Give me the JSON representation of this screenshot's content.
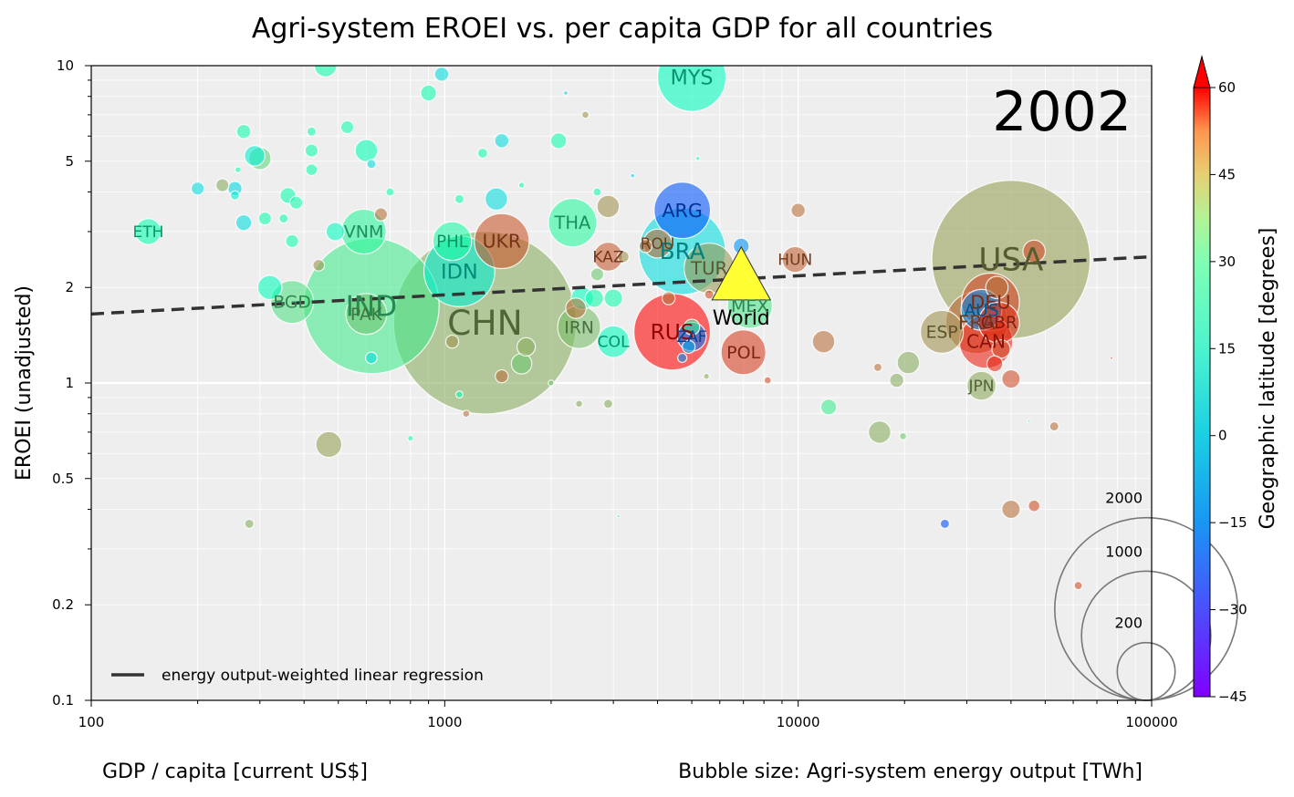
{
  "chart_data": {
    "type": "scatter",
    "title": "Agri-system EROEI vs. per capita GDP for all countries",
    "xlabel": "GDP / capita [current US$]",
    "ylabel": "EROEI (unadjusted)",
    "size_label": "Bubble size: Agri-system energy output [TWh]",
    "colorbar_label": "Geographic latitude [degrees]",
    "year": "2002",
    "x_scale": "log",
    "y_scale": "log",
    "xlim": [
      100,
      100000
    ],
    "ylim": [
      0.1,
      10
    ],
    "grid": true,
    "x_ticks": [
      100,
      1000,
      10000,
      100000
    ],
    "x_tick_labels": [
      "100",
      "1000",
      "10000",
      "100000"
    ],
    "y_ticks": [
      0.1,
      0.2,
      0.5,
      1,
      2,
      5,
      10
    ],
    "y_tick_labels": [
      "0.1",
      "0.2",
      "0.5",
      "1",
      "2",
      "5",
      "10"
    ],
    "colorbar": {
      "min": -45,
      "max": 60,
      "ticks": [
        60,
        45,
        30,
        15,
        0,
        -15,
        -30,
        -45
      ],
      "tick_labels": [
        "60",
        "45",
        "30",
        "15",
        "0",
        "−15",
        "−30",
        "−45"
      ],
      "extend": "max",
      "colormap": "rainbow"
    },
    "legend": {
      "placement": "lower-left",
      "entry": "energy output-weighted linear regression"
    },
    "size_legend": {
      "placement": "lower-right",
      "values": [
        2000,
        1000,
        200
      ],
      "labels": [
        "2000",
        "1000",
        "200"
      ]
    },
    "regression": {
      "x": [
        100,
        100000
      ],
      "y": [
        1.65,
        2.5
      ]
    },
    "world": {
      "label": "World",
      "x": 6900,
      "y": 2.2,
      "lat": 30
    },
    "labeled_points": [
      {
        "label": "USA",
        "x": 40000,
        "y": 2.45,
        "energy": 1500,
        "lat": 38
      },
      {
        "label": "CHN",
        "x": 1300,
        "y": 1.55,
        "energy": 2000,
        "lat": 35
      },
      {
        "label": "IND",
        "x": 620,
        "y": 1.75,
        "energy": 1100,
        "lat": 21
      },
      {
        "label": "IDN",
        "x": 1100,
        "y": 2.25,
        "energy": 300,
        "lat": -5
      },
      {
        "label": "BRA",
        "x": 4700,
        "y": 2.6,
        "energy": 450,
        "lat": -10
      },
      {
        "label": "RUS",
        "x": 4400,
        "y": 1.45,
        "energy": 350,
        "lat": 60
      },
      {
        "label": "ARG",
        "x": 4700,
        "y": 3.5,
        "energy": 190,
        "lat": -34
      },
      {
        "label": "MYS",
        "x": 5000,
        "y": 9.2,
        "energy": 280,
        "lat": 4
      },
      {
        "label": "THA",
        "x": 2300,
        "y": 3.2,
        "energy": 140,
        "lat": 15
      },
      {
        "label": "VNM",
        "x": 590,
        "y": 3.0,
        "energy": 120,
        "lat": 16
      },
      {
        "label": "PHL",
        "x": 1050,
        "y": 2.8,
        "energy": 90,
        "lat": 13
      },
      {
        "label": "UKR",
        "x": 1450,
        "y": 2.8,
        "energy": 180,
        "lat": 49
      },
      {
        "label": "KAZ",
        "x": 2900,
        "y": 2.5,
        "energy": 50,
        "lat": 48
      },
      {
        "label": "ROU",
        "x": 4000,
        "y": 2.75,
        "energy": 50,
        "lat": 46
      },
      {
        "label": "TUR",
        "x": 5600,
        "y": 2.3,
        "energy": 150,
        "lat": 39
      },
      {
        "label": "HUN",
        "x": 9800,
        "y": 2.45,
        "energy": 40,
        "lat": 47
      },
      {
        "label": "MEX",
        "x": 7300,
        "y": 1.75,
        "energy": 120,
        "lat": 23
      },
      {
        "label": "POL",
        "x": 7000,
        "y": 1.25,
        "energy": 120,
        "lat": 52
      },
      {
        "label": "ZAF",
        "x": 5000,
        "y": 1.4,
        "energy": 50,
        "lat": -29
      },
      {
        "label": "COL",
        "x": 3000,
        "y": 1.35,
        "energy": 60,
        "lat": 4
      },
      {
        "label": "IRN",
        "x": 2400,
        "y": 1.5,
        "energy": 110,
        "lat": 32
      },
      {
        "label": "BGD",
        "x": 370,
        "y": 1.8,
        "energy": 110,
        "lat": 24
      },
      {
        "label": "PAK",
        "x": 600,
        "y": 1.65,
        "energy": 100,
        "lat": 30
      },
      {
        "label": "ETH",
        "x": 145,
        "y": 3.0,
        "energy": 40,
        "lat": 9
      },
      {
        "label": "DEU",
        "x": 35000,
        "y": 1.8,
        "energy": 200,
        "lat": 51
      },
      {
        "label": "AUS",
        "x": 33000,
        "y": 1.7,
        "energy": 100,
        "lat": -25
      },
      {
        "label": "FRA",
        "x": 32000,
        "y": 1.55,
        "energy": 230,
        "lat": 46
      },
      {
        "label": "GBR",
        "x": 37000,
        "y": 1.55,
        "energy": 100,
        "lat": 54
      },
      {
        "label": "CAN",
        "x": 34000,
        "y": 1.35,
        "energy": 170,
        "lat": 56
      },
      {
        "label": "ESP",
        "x": 25500,
        "y": 1.45,
        "energy": 110,
        "lat": 40
      },
      {
        "label": "JPN",
        "x": 33000,
        "y": 0.98,
        "energy": 50,
        "lat": 36
      }
    ],
    "other_points": [
      {
        "x": 460,
        "y": 10.0,
        "energy": 30,
        "lat": 10
      },
      {
        "x": 980,
        "y": 9.4,
        "energy": 12,
        "lat": -10
      },
      {
        "x": 900,
        "y": 8.2,
        "energy": 15,
        "lat": 10
      },
      {
        "x": 2200,
        "y": 8.2,
        "energy": 1,
        "lat": -15
      },
      {
        "x": 2500,
        "y": 7.0,
        "energy": 3,
        "lat": 40
      },
      {
        "x": 270,
        "y": 6.2,
        "energy": 12,
        "lat": 10
      },
      {
        "x": 420,
        "y": 6.2,
        "energy": 5,
        "lat": 10
      },
      {
        "x": 530,
        "y": 6.4,
        "energy": 10,
        "lat": 10
      },
      {
        "x": 1450,
        "y": 5.8,
        "energy": 12,
        "lat": -10
      },
      {
        "x": 2100,
        "y": 5.8,
        "energy": 15,
        "lat": 10
      },
      {
        "x": 600,
        "y": 5.4,
        "energy": 30,
        "lat": 8
      },
      {
        "x": 300,
        "y": 5.1,
        "energy": 30,
        "lat": 27
      },
      {
        "x": 290,
        "y": 5.2,
        "energy": 25,
        "lat": -5
      },
      {
        "x": 420,
        "y": 5.4,
        "energy": 10,
        "lat": 10
      },
      {
        "x": 1280,
        "y": 5.3,
        "energy": 6,
        "lat": 10
      },
      {
        "x": 620,
        "y": 4.9,
        "energy": 5,
        "lat": -10
      },
      {
        "x": 420,
        "y": 4.7,
        "energy": 8,
        "lat": 10
      },
      {
        "x": 260,
        "y": 4.7,
        "energy": 2,
        "lat": 10
      },
      {
        "x": 200,
        "y": 4.1,
        "energy": 10,
        "lat": -10
      },
      {
        "x": 235,
        "y": 4.2,
        "energy": 10,
        "lat": 35
      },
      {
        "x": 255,
        "y": 4.1,
        "energy": 12,
        "lat": -12
      },
      {
        "x": 255,
        "y": 3.9,
        "energy": 5,
        "lat": -5
      },
      {
        "x": 700,
        "y": 4.0,
        "energy": 4,
        "lat": 10
      },
      {
        "x": 1650,
        "y": 4.2,
        "energy": 2,
        "lat": 10
      },
      {
        "x": 1400,
        "y": 3.8,
        "energy": 30,
        "lat": -10
      },
      {
        "x": 1100,
        "y": 3.8,
        "energy": 5,
        "lat": 10
      },
      {
        "x": 2700,
        "y": 4.0,
        "energy": 4,
        "lat": 10
      },
      {
        "x": 2900,
        "y": 3.6,
        "energy": 30,
        "lat": 40
      },
      {
        "x": 360,
        "y": 3.9,
        "energy": 15,
        "lat": 10
      },
      {
        "x": 380,
        "y": 3.7,
        "energy": 10,
        "lat": 10
      },
      {
        "x": 270,
        "y": 3.2,
        "energy": 15,
        "lat": -10
      },
      {
        "x": 310,
        "y": 3.3,
        "energy": 10,
        "lat": 10
      },
      {
        "x": 350,
        "y": 3.3,
        "energy": 5,
        "lat": 10
      },
      {
        "x": 490,
        "y": 3.0,
        "energy": 20,
        "lat": 5
      },
      {
        "x": 660,
        "y": 3.4,
        "energy": 10,
        "lat": 45
      },
      {
        "x": 370,
        "y": 2.8,
        "energy": 10,
        "lat": 10
      },
      {
        "x": 3400,
        "y": 4.5,
        "energy": 1,
        "lat": -15
      },
      {
        "x": 5200,
        "y": 5.1,
        "energy": 1,
        "lat": 10
      },
      {
        "x": 10000,
        "y": 3.5,
        "energy": 12,
        "lat": 45
      },
      {
        "x": 6900,
        "y": 2.7,
        "energy": 15,
        "lat": -25
      },
      {
        "x": 3700,
        "y": 2.7,
        "energy": 10,
        "lat": 45
      },
      {
        "x": 3200,
        "y": 2.5,
        "energy": 8,
        "lat": 40
      },
      {
        "x": 440,
        "y": 2.35,
        "energy": 8,
        "lat": 40
      },
      {
        "x": 2700,
        "y": 2.2,
        "energy": 10,
        "lat": 30
      },
      {
        "x": 3000,
        "y": 1.85,
        "energy": 20,
        "lat": 10
      },
      {
        "x": 2450,
        "y": 1.85,
        "energy": 30,
        "lat": 5
      },
      {
        "x": 2350,
        "y": 1.72,
        "energy": 25,
        "lat": 45
      },
      {
        "x": 2650,
        "y": 1.85,
        "energy": 20,
        "lat": 10
      },
      {
        "x": 320,
        "y": 2.0,
        "energy": 35,
        "lat": 5
      },
      {
        "x": 4300,
        "y": 1.85,
        "energy": 10,
        "lat": 45
      },
      {
        "x": 5000,
        "y": 1.5,
        "energy": 15,
        "lat": 20
      },
      {
        "x": 4900,
        "y": 1.3,
        "energy": 10,
        "lat": -20
      },
      {
        "x": 4700,
        "y": 1.2,
        "energy": 5,
        "lat": -25
      },
      {
        "x": 5500,
        "y": 1.05,
        "energy": 2,
        "lat": 35
      },
      {
        "x": 5600,
        "y": 1.9,
        "energy": 5,
        "lat": 50
      },
      {
        "x": 1700,
        "y": 1.3,
        "energy": 20,
        "lat": 35
      },
      {
        "x": 1650,
        "y": 1.15,
        "energy": 25,
        "lat": 30
      },
      {
        "x": 1050,
        "y": 1.35,
        "energy": 10,
        "lat": 40
      },
      {
        "x": 1450,
        "y": 1.05,
        "energy": 10,
        "lat": 45
      },
      {
        "x": 620,
        "y": 1.2,
        "energy": 8,
        "lat": -10
      },
      {
        "x": 1100,
        "y": 0.92,
        "energy": 3,
        "lat": 10
      },
      {
        "x": 1150,
        "y": 0.8,
        "energy": 3,
        "lat": 45
      },
      {
        "x": 2000,
        "y": 1.0,
        "energy": 2,
        "lat": 30
      },
      {
        "x": 2400,
        "y": 0.86,
        "energy": 3,
        "lat": 35
      },
      {
        "x": 2900,
        "y": 0.86,
        "energy": 5,
        "lat": 35
      },
      {
        "x": 8200,
        "y": 1.02,
        "energy": 3,
        "lat": 50
      },
      {
        "x": 11800,
        "y": 1.35,
        "energy": 30,
        "lat": 45
      },
      {
        "x": 12200,
        "y": 0.84,
        "energy": 15,
        "lat": 20
      },
      {
        "x": 17000,
        "y": 0.7,
        "energy": 30,
        "lat": 35
      },
      {
        "x": 19000,
        "y": 1.02,
        "energy": 12,
        "lat": 35
      },
      {
        "x": 20500,
        "y": 1.16,
        "energy": 30,
        "lat": 35
      },
      {
        "x": 16800,
        "y": 1.12,
        "energy": 4,
        "lat": 45
      },
      {
        "x": 19800,
        "y": 0.68,
        "energy": 3,
        "lat": 30
      },
      {
        "x": 36000,
        "y": 1.15,
        "energy": 15,
        "lat": 55
      },
      {
        "x": 37500,
        "y": 1.28,
        "energy": 20,
        "lat": 50
      },
      {
        "x": 40000,
        "y": 1.03,
        "energy": 20,
        "lat": 50
      },
      {
        "x": 36500,
        "y": 2.0,
        "energy": 30,
        "lat": 45
      },
      {
        "x": 46500,
        "y": 2.6,
        "energy": 30,
        "lat": 50
      },
      {
        "x": 53000,
        "y": 0.73,
        "energy": 5,
        "lat": 45
      },
      {
        "x": 40000,
        "y": 0.4,
        "energy": 20,
        "lat": 45
      },
      {
        "x": 46500,
        "y": 0.41,
        "energy": 8,
        "lat": 50
      },
      {
        "x": 26000,
        "y": 0.36,
        "energy": 5,
        "lat": -35
      },
      {
        "x": 62000,
        "y": 0.23,
        "energy": 4,
        "lat": 50
      },
      {
        "x": 470,
        "y": 0.64,
        "energy": 40,
        "lat": 38
      },
      {
        "x": 280,
        "y": 0.36,
        "energy": 5,
        "lat": 35
      },
      {
        "x": 800,
        "y": 0.67,
        "energy": 2,
        "lat": 10
      },
      {
        "x": 3100,
        "y": 0.38,
        "energy": 0.5,
        "lat": -10
      },
      {
        "x": 77000,
        "y": 1.2,
        "energy": 0.5,
        "lat": 50
      },
      {
        "x": 45000,
        "y": 0.76,
        "energy": 0.5,
        "lat": 20
      }
    ]
  }
}
